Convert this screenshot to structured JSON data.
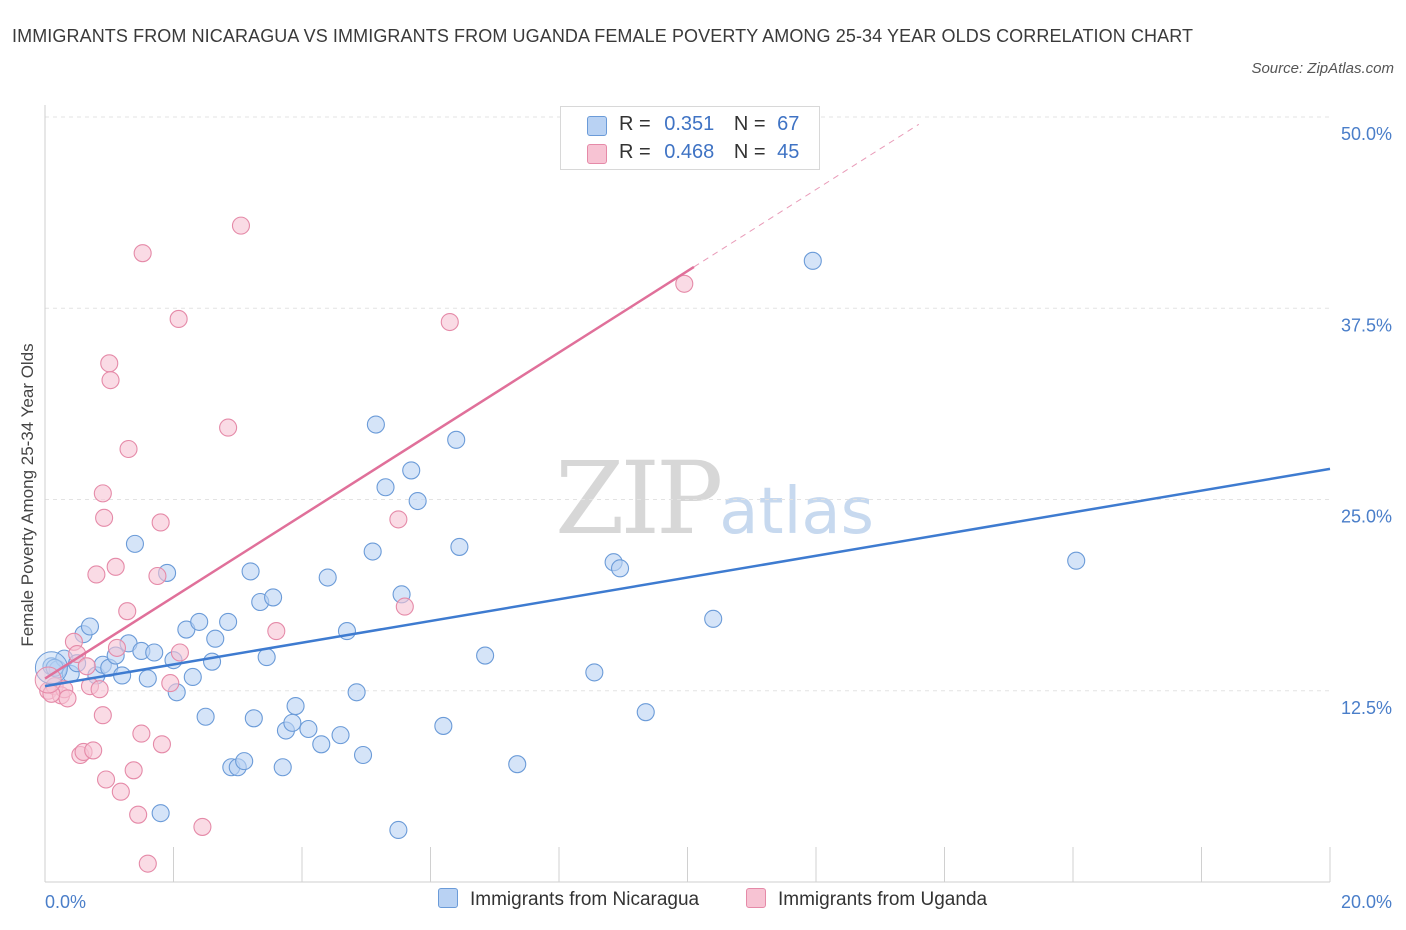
{
  "title": "IMMIGRANTS FROM NICARAGUA VS IMMIGRANTS FROM UGANDA FEMALE POVERTY AMONG 25-34 YEAR OLDS CORRELATION CHART",
  "source": "Source: ZipAtlas.com",
  "watermark": {
    "zip": "ZIP",
    "atlas": "atlas"
  },
  "legend": {
    "r_label": "R =",
    "n_label": "N =",
    "rows": [
      {
        "r": "0.351",
        "n": "67"
      },
      {
        "r": "0.468",
        "n": "45"
      }
    ]
  },
  "colors": {
    "nicaragua_fill": "#b9d2f3",
    "nicaragua_stroke": "#6b9bd8",
    "nicaragua_line": "#3e7bd0",
    "uganda_fill": "#f7c3d3",
    "uganda_stroke": "#e58aa8",
    "uganda_line": "#e0709a"
  },
  "chart_data": {
    "type": "scatter",
    "title": "IMMIGRANTS FROM NICARAGUA VS IMMIGRANTS FROM UGANDA FEMALE POVERTY AMONG 25-34 YEAR OLDS CORRELATION CHART",
    "xlabel": "",
    "ylabel": "Female Poverty Among 25-34 Year Olds",
    "xlim": [
      0,
      20
    ],
    "ylim": [
      0,
      50
    ],
    "x_tick_labels": [
      "0.0%",
      "20.0%"
    ],
    "y_ticks": [
      12.5,
      25.0,
      37.5,
      50.0
    ],
    "y_tick_labels": [
      "12.5%",
      "25.0%",
      "37.5%",
      "50.0%"
    ],
    "grid": true,
    "legend_position": "bottom",
    "series": [
      {
        "name": "Immigrants from Nicaragua",
        "points": [
          [
            0.1,
            14.1
          ],
          [
            0.2,
            13.9
          ],
          [
            0.3,
            14.6
          ],
          [
            0.4,
            13.6
          ],
          [
            0.5,
            14.3
          ],
          [
            0.6,
            16.2
          ],
          [
            0.7,
            16.7
          ],
          [
            0.8,
            13.5
          ],
          [
            0.9,
            14.2
          ],
          [
            1.0,
            14.0
          ],
          [
            1.1,
            14.8
          ],
          [
            1.2,
            13.5
          ],
          [
            1.3,
            15.6
          ],
          [
            1.4,
            22.1
          ],
          [
            1.5,
            15.1
          ],
          [
            1.6,
            13.3
          ],
          [
            1.7,
            15.0
          ],
          [
            1.8,
            4.5
          ],
          [
            1.9,
            20.2
          ],
          [
            2.0,
            14.5
          ],
          [
            2.05,
            12.4
          ],
          [
            2.2,
            16.5
          ],
          [
            2.3,
            13.4
          ],
          [
            2.4,
            17.0
          ],
          [
            2.5,
            10.8
          ],
          [
            2.6,
            14.4
          ],
          [
            2.65,
            15.9
          ],
          [
            2.85,
            17.0
          ],
          [
            2.9,
            7.5
          ],
          [
            3.0,
            7.5
          ],
          [
            3.1,
            7.9
          ],
          [
            3.2,
            20.3
          ],
          [
            3.25,
            10.7
          ],
          [
            3.35,
            18.3
          ],
          [
            3.45,
            14.7
          ],
          [
            3.55,
            18.6
          ],
          [
            3.7,
            7.5
          ],
          [
            3.75,
            9.9
          ],
          [
            3.85,
            10.4
          ],
          [
            3.9,
            11.5
          ],
          [
            4.1,
            10.0
          ],
          [
            4.3,
            9.0
          ],
          [
            4.4,
            19.9
          ],
          [
            4.6,
            9.6
          ],
          [
            4.7,
            16.4
          ],
          [
            4.85,
            12.4
          ],
          [
            4.95,
            8.3
          ],
          [
            5.1,
            21.6
          ],
          [
            5.15,
            29.9
          ],
          [
            5.3,
            25.8
          ],
          [
            5.5,
            3.4
          ],
          [
            5.55,
            18.8
          ],
          [
            5.7,
            26.9
          ],
          [
            5.8,
            24.9
          ],
          [
            6.2,
            10.2
          ],
          [
            6.4,
            28.9
          ],
          [
            6.45,
            21.9
          ],
          [
            6.85,
            14.8
          ],
          [
            7.35,
            7.7
          ],
          [
            8.55,
            13.7
          ],
          [
            8.85,
            20.9
          ],
          [
            8.95,
            20.5
          ],
          [
            9.35,
            11.1
          ],
          [
            10.4,
            17.2
          ],
          [
            11.95,
            40.6
          ],
          [
            16.05,
            21.0
          ],
          [
            0.15,
            14.0
          ]
        ]
      },
      {
        "name": "Immigrants from Uganda",
        "points": [
          [
            0.05,
            12.5
          ],
          [
            0.15,
            12.8
          ],
          [
            0.25,
            12.2
          ],
          [
            0.3,
            12.6
          ],
          [
            0.35,
            12.0
          ],
          [
            0.45,
            15.7
          ],
          [
            0.5,
            14.9
          ],
          [
            0.55,
            8.3
          ],
          [
            0.6,
            8.5
          ],
          [
            0.65,
            14.1
          ],
          [
            0.7,
            12.8
          ],
          [
            0.75,
            8.6
          ],
          [
            0.8,
            20.1
          ],
          [
            0.85,
            12.6
          ],
          [
            0.9,
            10.9
          ],
          [
            0.9,
            25.4
          ],
          [
            0.92,
            23.8
          ],
          [
            0.95,
            6.7
          ],
          [
            1.0,
            33.9
          ],
          [
            1.02,
            32.8
          ],
          [
            1.1,
            20.6
          ],
          [
            1.12,
            15.3
          ],
          [
            1.18,
            5.9
          ],
          [
            1.28,
            17.7
          ],
          [
            1.3,
            28.3
          ],
          [
            1.38,
            7.3
          ],
          [
            1.45,
            4.4
          ],
          [
            1.5,
            9.7
          ],
          [
            1.52,
            41.1
          ],
          [
            1.6,
            1.2
          ],
          [
            1.75,
            20.0
          ],
          [
            1.8,
            23.5
          ],
          [
            1.82,
            9.0
          ],
          [
            1.95,
            13.0
          ],
          [
            2.08,
            36.8
          ],
          [
            2.1,
            15.0
          ],
          [
            2.45,
            3.6
          ],
          [
            2.85,
            29.7
          ],
          [
            3.05,
            42.9
          ],
          [
            3.6,
            16.4
          ],
          [
            5.5,
            23.7
          ],
          [
            5.6,
            18.0
          ],
          [
            6.3,
            36.6
          ],
          [
            9.95,
            39.1
          ],
          [
            0.1,
            12.3
          ]
        ]
      }
    ],
    "trend_lines": [
      {
        "series": "Immigrants from Nicaragua",
        "x": [
          0,
          20
        ],
        "y": [
          12.8,
          27.0
        ]
      },
      {
        "series": "Immigrants from Uganda",
        "x": [
          0,
          10.1
        ],
        "y": [
          13.3,
          40.2
        ],
        "dashed_extension_x": [
          10.1,
          13.6
        ]
      }
    ]
  }
}
